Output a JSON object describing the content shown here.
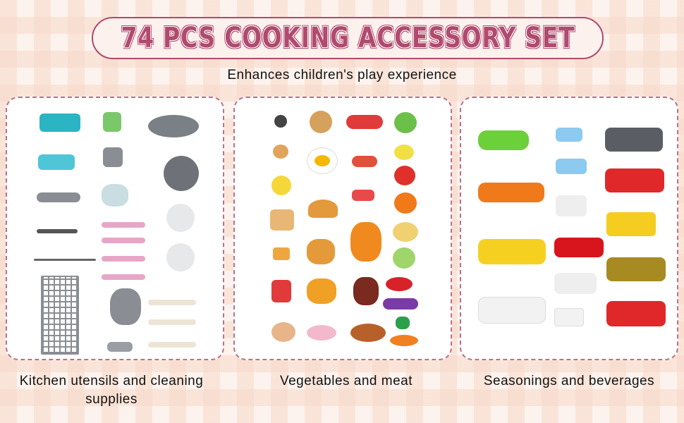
{
  "header": {
    "title": "74 PCS COOKING ACCESSORY SET",
    "subtitle": "Enhances children's play experience"
  },
  "panels": [
    {
      "caption": "Kitchen utensils and cleaning supplies"
    },
    {
      "caption": "Vegetables and meat"
    },
    {
      "caption": "Seasonings and beverages"
    }
  ],
  "colors": {
    "accent": "#b04a6e",
    "border": "#b9728a"
  }
}
